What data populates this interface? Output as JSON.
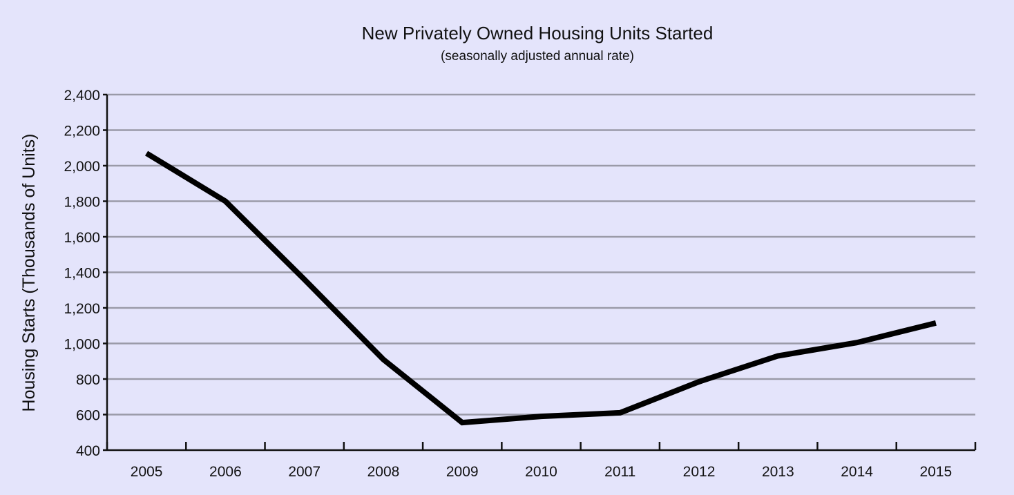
{
  "chart_data": {
    "type": "line",
    "title": "New Privately Owned Housing Units Started",
    "subtitle": "(seasonally adjusted annual rate)",
    "xlabel": "",
    "ylabel": "Housing Starts (Thousands of Units)",
    "categories": [
      "2005",
      "2006",
      "2007",
      "2008",
      "2009",
      "2010",
      "2011",
      "2012",
      "2013",
      "2014",
      "2015"
    ],
    "ylim": [
      400,
      2400
    ],
    "yticks": [
      400,
      600,
      800,
      1000,
      1200,
      1400,
      1600,
      1800,
      2000,
      2200,
      2400
    ],
    "ytick_labels": [
      "400",
      "600",
      "800",
      "1,000",
      "1,200",
      "1,400",
      "1,600",
      "1,800",
      "2,000",
      "2,200",
      "2,400"
    ],
    "grid": true,
    "series": [
      {
        "values": [
          2070,
          1800,
          1360,
          910,
          555,
          590,
          610,
          785,
          930,
          1005,
          1115
        ],
        "color": "#000000"
      }
    ]
  }
}
